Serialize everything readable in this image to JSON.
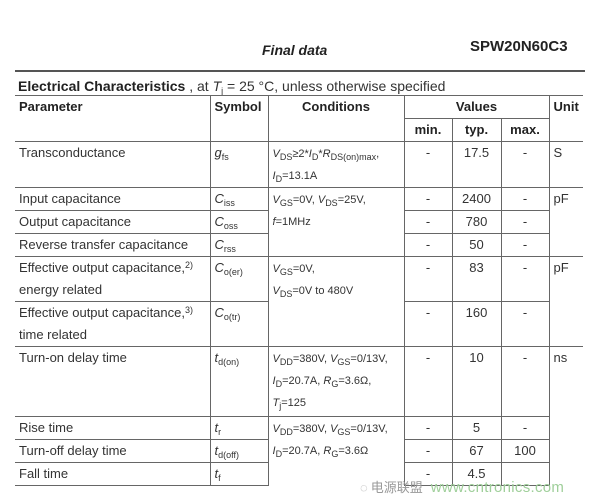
{
  "header": {
    "title": "Final data",
    "part_number": "SPW20N60C3"
  },
  "caption": {
    "bold": "Electrical Characteristics",
    "pre": " , at ",
    "T": "T",
    "Tsub": "j",
    "post": " = 25 °C, unless otherwise specified"
  },
  "columns": {
    "parameter": "Parameter",
    "symbol": "Symbol",
    "conditions": "Conditions",
    "values": "Values",
    "min": "min.",
    "typ": "typ.",
    "max": "max.",
    "unit": "Unit"
  },
  "rows": [
    {
      "param": [
        "Transconductance"
      ],
      "sym": "g",
      "sub": "fs",
      "min": "-",
      "typ": "17.5",
      "max": "-",
      "unit": "S",
      "cond": [
        [
          {
            "t": "V",
            "i": 1
          },
          {
            "t": "DS",
            "s": 1
          },
          {
            "t": "≥2*"
          },
          {
            "t": "I",
            "i": 1
          },
          {
            "t": "D",
            "s": 1
          },
          {
            "t": "*"
          },
          {
            "t": "R",
            "i": 1
          },
          {
            "t": "DS(on)max",
            "s": 1
          },
          {
            "t": ","
          }
        ],
        [
          {
            "t": "I",
            "i": 1
          },
          {
            "t": "D",
            "s": 1
          },
          {
            "t": "=13.1A"
          }
        ]
      ]
    },
    {
      "param": [
        "Input capacitance"
      ],
      "sym": "C",
      "sub": "iss",
      "min": "-",
      "typ": "2400",
      "max": "-",
      "unit": "pF",
      "cond": [
        [
          {
            "t": "V",
            "i": 1
          },
          {
            "t": "GS",
            "s": 1
          },
          {
            "t": "=0V, "
          },
          {
            "t": "V",
            "i": 1
          },
          {
            "t": "DS",
            "s": 1
          },
          {
            "t": "=25V,"
          }
        ],
        [
          {
            "t": "f",
            "i": 1
          },
          {
            "t": "=1MHz"
          }
        ]
      ]
    },
    {
      "param": [
        "Output capacitance"
      ],
      "sym": "C",
      "sub": "oss",
      "min": "-",
      "typ": "780",
      "max": "-"
    },
    {
      "param": [
        "Reverse transfer capacitance"
      ],
      "sym": "C",
      "sub": "rss",
      "min": "-",
      "typ": "50",
      "max": "-"
    },
    {
      "param": [
        "Effective output capacitance,",
        "energy related"
      ],
      "note": "2)",
      "sym": "C",
      "sub": "o(er)",
      "min": "-",
      "typ": "83",
      "max": "-",
      "unit": "pF",
      "cond": [
        [
          {
            "t": "V",
            "i": 1
          },
          {
            "t": "GS",
            "s": 1
          },
          {
            "t": "=0V,"
          }
        ],
        [
          {
            "t": "V",
            "i": 1
          },
          {
            "t": "DS",
            "s": 1
          },
          {
            "t": "=0V to 480V"
          }
        ]
      ]
    },
    {
      "param": [
        "Effective output capacitance,",
        "time related"
      ],
      "note": "3)",
      "sym": "C",
      "sub": "o(tr)",
      "min": "-",
      "typ": "160",
      "max": "-"
    },
    {
      "param": [
        "Turn-on delay time"
      ],
      "sym": "t",
      "sub": "d(on)",
      "min": "-",
      "typ": "10",
      "max": "-",
      "unit": "ns",
      "cond": [
        [
          {
            "t": "V",
            "i": 1
          },
          {
            "t": "DD",
            "s": 1
          },
          {
            "t": "=380V, "
          },
          {
            "t": "V",
            "i": 1
          },
          {
            "t": "GS",
            "s": 1
          },
          {
            "t": "=0/13V,"
          }
        ],
        [
          {
            "t": "I",
            "i": 1
          },
          {
            "t": "D",
            "s": 1
          },
          {
            "t": "=20.7A, "
          },
          {
            "t": "R",
            "i": 1
          },
          {
            "t": "G",
            "s": 1
          },
          {
            "t": "=3.6Ω,"
          }
        ],
        [
          {
            "t": "T",
            "i": 1
          },
          {
            "t": "j",
            "s": 1
          },
          {
            "t": "=125"
          }
        ]
      ]
    },
    {
      "param": [
        "Rise time"
      ],
      "sym": "t",
      "sub": "r",
      "min": "-",
      "typ": "5",
      "max": "-",
      "cond": [
        [
          {
            "t": "V",
            "i": 1
          },
          {
            "t": "DD",
            "s": 1
          },
          {
            "t": "=380V, "
          },
          {
            "t": "V",
            "i": 1
          },
          {
            "t": "GS",
            "s": 1
          },
          {
            "t": "=0/13V,"
          }
        ],
        [
          {
            "t": "I",
            "i": 1
          },
          {
            "t": "D",
            "s": 1
          },
          {
            "t": "=20.7A, "
          },
          {
            "t": "R",
            "i": 1
          },
          {
            "t": "G",
            "s": 1
          },
          {
            "t": "=3.6Ω"
          }
        ]
      ]
    },
    {
      "param": [
        "Turn-off delay time"
      ],
      "sym": "t",
      "sub": "d(off)",
      "min": "-",
      "typ": "67",
      "max": "100"
    },
    {
      "param": [
        "Fall time"
      ],
      "sym": "t",
      "sub": "f",
      "min": "-",
      "typ": "4.5",
      "max": ""
    }
  ],
  "watermark": {
    "brand": "电源联盟",
    "url": "www.cntronics.com",
    "icon": "wechat-icon",
    "url_color": "#9fcf9a"
  }
}
